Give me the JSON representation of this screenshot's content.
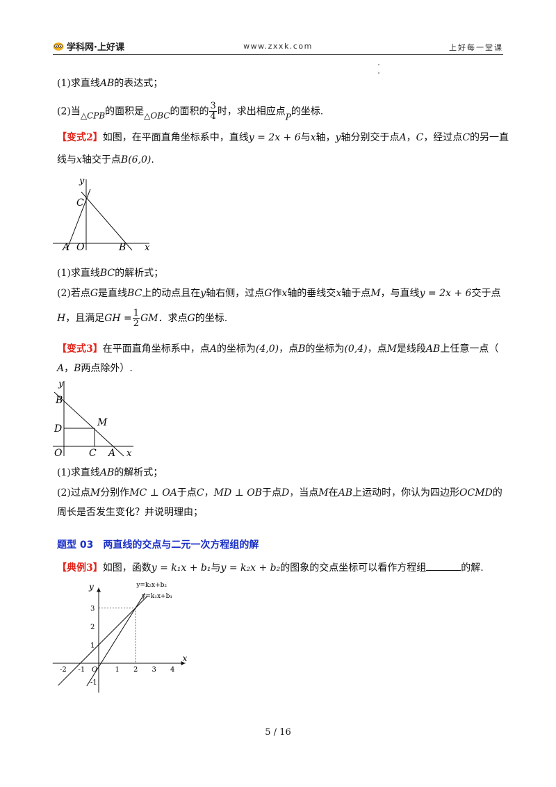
{
  "header": {
    "logo_text": "学科网·上好课",
    "url": "www.zxxk.com",
    "slogan": "上好每一堂课"
  },
  "q1": {
    "p1_pre": "(1)求直线",
    "p1_var": "AB",
    "p1_post": "的表达式；",
    "p2_pre": "(2)当",
    "p2_tri1": "△CPB",
    "p2_mid1": "的面积是",
    "p2_tri2": "△OBC",
    "p2_mid2": "的面积的",
    "p2_num": "3",
    "p2_den": "4",
    "p2_mid3": "时，求出相应点",
    "p2_var": "P",
    "p2_post": "的坐标."
  },
  "v2": {
    "tag": "【变式2】",
    "t1": "如图，在平面直角坐标系中，直线",
    "eq": "y = 2x + 6",
    "t2": "与",
    "x": "x",
    "t3": "轴，",
    "y": "y",
    "t4": "轴分别交于点",
    "A": "A",
    "sep": "，",
    "C": "C",
    "t5": "，经过点",
    "C2": "C",
    "t6": "的另一直",
    "line2_pre": "线与",
    "x2": "x",
    "line2_mid": "轴交于点",
    "B": "B(6,0)",
    "line2_post": ".",
    "fig": {
      "y": "y",
      "C": "C",
      "A": "A",
      "O": "O",
      "B": "B",
      "x": "x"
    },
    "p1_pre": "(1)求直线",
    "p1_var": "BC",
    "p1_post": "的解析式；",
    "p2_a": "(2)若点",
    "p2_G": "G",
    "p2_b": "是直线",
    "p2_BC": "BC",
    "p2_c": "上的动点且在",
    "p2_y": "y",
    "p2_d": "轴右侧，过点",
    "p2_G2": "G",
    "p2_e": "作",
    "p2_x": "x",
    "p2_f": "轴的垂线交",
    "p2_x2": "x",
    "p2_g": "轴于点",
    "p2_M": "M",
    "p2_h": "，与直线",
    "p2_eq": "y = 2x + 6",
    "p2_i": "交于点",
    "p3_H": "H",
    "p3_a": "，且满足",
    "p3_GH": "GH =",
    "p3_num": "1",
    "p3_den": "2",
    "p3_GM": "GM",
    "p3_b": "．求点",
    "p3_G": "G",
    "p3_c": "的坐标."
  },
  "v3": {
    "tag": "【变式3】",
    "t1": "在平面直角坐标系中，点",
    "A": "A",
    "t2": "的坐标为",
    "Acoord": "(4,0)",
    "t3": "，点",
    "B": "B",
    "t4": "的坐标为",
    "Bcoord": "(0,4)",
    "t5": "，点",
    "M": "M",
    "t6": "是线段",
    "AB": "AB",
    "t7": "上任意一点（",
    "l2_A": "A",
    "l2_sep": "，",
    "l2_B": "B",
    "l2_post": "两点除外）.",
    "fig": {
      "y": "y",
      "B": "B",
      "D": "D",
      "M": "M",
      "O": "O",
      "C": "C",
      "A": "A",
      "x": "x"
    },
    "p1_pre": "(1)求直线",
    "p1_var": "AB",
    "p1_post": "的解析式；",
    "p2_a": "(2)过点",
    "p2_M": "M",
    "p2_b": "分别作",
    "p2_c1": "MC ⊥ OA",
    "p2_d": "于点",
    "p2_C": "C",
    "p2_e": "，",
    "p2_c2": "MD ⊥ OB",
    "p2_f": "于点",
    "p2_D": "D",
    "p2_g": "，当点",
    "p2_M2": "M",
    "p2_h": "在",
    "p2_AB": "AB",
    "p2_i": "上运动时，你认为四边形",
    "p2_OCMD": "OCMD",
    "p2_j": "的",
    "p3": "周长是否发生变化？并说明理由；"
  },
  "section": {
    "title": "题型 03　两直线的交点与二元一次方程组的解"
  },
  "ex3": {
    "tag": "【典例3】",
    "t1": "如图，函数",
    "eq1": "y = k₁x + b₁",
    "t2": "与",
    "eq2": "y = k₂x + b₂",
    "t3": "的图象的交点坐标可以看作方程组",
    "t4": "的解.",
    "fig": {
      "y": "y",
      "x": "x",
      "lbl1": "y=k₂x+b₂",
      "lbl2": "y=k₁x+b₁",
      "yticks": [
        "3",
        "2",
        "1",
        "-1"
      ],
      "xticks": [
        "-2",
        "-1",
        "O",
        "1",
        "2",
        "3",
        "4"
      ]
    }
  },
  "chart_data": {
    "type": "line",
    "title": "",
    "xlabel": "x",
    "ylabel": "y",
    "xlim": [
      -2,
      4
    ],
    "ylim": [
      -1,
      3
    ],
    "series": [
      {
        "name": "y=k₂x+b₂",
        "x": [
          -0.5,
          2
        ],
        "y": [
          -1,
          3
        ]
      },
      {
        "name": "y=k₁x+b₁",
        "x": [
          -1,
          2
        ],
        "y": [
          0,
          3
        ]
      }
    ]
  },
  "footer": {
    "page": "5 / 16"
  }
}
